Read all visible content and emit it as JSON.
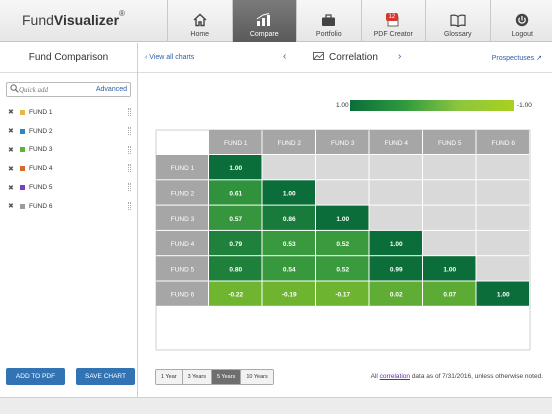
{
  "brand": {
    "name_light": "Fund",
    "name_bold": "Visualizer",
    "mark": "®"
  },
  "nav": [
    {
      "label": "Home",
      "icon": "home-icon"
    },
    {
      "label": "Compare",
      "icon": "bar-chart-icon",
      "active": true
    },
    {
      "label": "Portfolio",
      "icon": "briefcase-icon"
    },
    {
      "label": "PDF Creator",
      "icon": "pdf-badge-icon",
      "badge": "12"
    },
    {
      "label": "Glossary",
      "icon": "book-icon"
    },
    {
      "label": "Logout",
      "icon": "power-icon"
    }
  ],
  "sidebar": {
    "title": "Fund Comparison",
    "search_placeholder": "Quick add",
    "advanced_label": "Advanced",
    "remove_glyph": "✖",
    "funds": [
      {
        "label": "FUND 1",
        "color": "#e8b54a"
      },
      {
        "label": "FUND 2",
        "color": "#2e86c8"
      },
      {
        "label": "FUND 3",
        "color": "#5cb531"
      },
      {
        "label": "FUND 4",
        "color": "#d46a2e"
      },
      {
        "label": "FUND 5",
        "color": "#7a3fc2"
      },
      {
        "label": "FUND 6",
        "color": "#9b9b9b"
      }
    ],
    "add_to_pdf": "ADD TO PDF",
    "save_chart": "SAVE CHART"
  },
  "chart_header": {
    "view_all": "View all charts",
    "title": "Correlation",
    "prospectuses": "Prospectuses"
  },
  "chart_data": {
    "type": "heatmap",
    "title": "Correlation",
    "columns": [
      "FUND 1",
      "FUND 2",
      "FUND 3",
      "FUND 4",
      "FUND 5",
      "FUND 6"
    ],
    "rows": [
      "FUND 1",
      "FUND 2",
      "FUND 3",
      "FUND 4",
      "FUND 5",
      "FUND 6"
    ],
    "values": [
      [
        1.0,
        null,
        null,
        null,
        null,
        null
      ],
      [
        0.61,
        1.0,
        null,
        null,
        null,
        null
      ],
      [
        0.57,
        0.86,
        1.0,
        null,
        null,
        null
      ],
      [
        0.79,
        0.53,
        0.52,
        1.0,
        null,
        null
      ],
      [
        0.8,
        0.54,
        0.52,
        0.99,
        1.0,
        null
      ],
      [
        -0.22,
        -0.19,
        -0.17,
        0.02,
        0.07,
        1.0
      ]
    ],
    "legend": {
      "high_label": "1.00",
      "low_label": "-1.00",
      "high_color": "#0b6e3a",
      "low_color": "#a9d11e"
    },
    "header_color": "#a6a6a6",
    "empty_color": "#d9d9d9"
  },
  "time_ranges": [
    {
      "label": "1 Year"
    },
    {
      "label": "3 Years"
    },
    {
      "label": "5 Years",
      "active": true
    },
    {
      "label": "10 Years"
    }
  ],
  "footnote": {
    "prefix": "All ",
    "link": "correlation",
    "suffix": " data as of 7/31/2016, unless otherwise noted."
  }
}
